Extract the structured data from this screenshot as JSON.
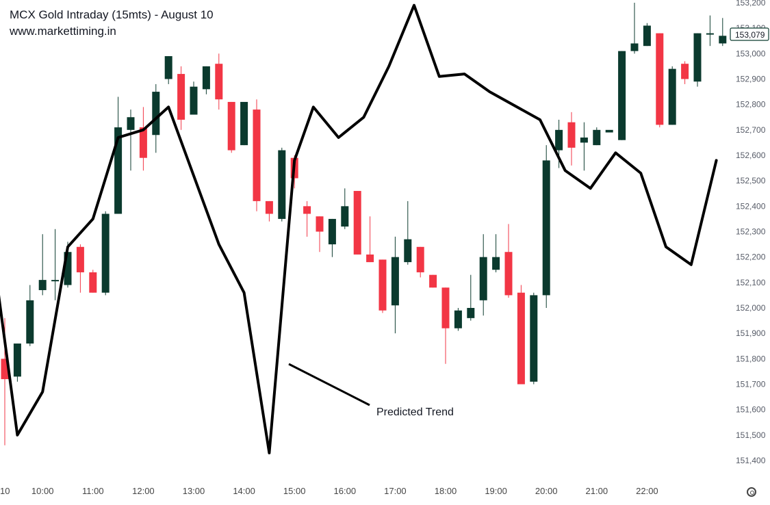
{
  "chart_data": {
    "type": "candlestick",
    "title": "MCX Gold Intraday (15mts) - August 10",
    "subtitle": "www.markettiming.in",
    "y_ticks": [
      151400,
      151500,
      151600,
      151700,
      151800,
      151900,
      152000,
      152100,
      152200,
      152300,
      152400,
      152500,
      152600,
      152700,
      152800,
      152900,
      153000,
      153100,
      153200
    ],
    "y_tick_labels": [
      "151,400",
      "151,500",
      "151,600",
      "151,700",
      "151,800",
      "151,900",
      "152,000",
      "152,100",
      "152,200",
      "152,300",
      "152,400",
      "152,500",
      "152,600",
      "152,700",
      "152,800",
      "152,900",
      "153,000",
      "153,100",
      "153,200"
    ],
    "ylim": [
      151350,
      153210
    ],
    "x_ticks": [
      {
        "label": "10",
        "index": -1
      },
      {
        "label": "10:00",
        "index": 3
      },
      {
        "label": "11:00",
        "index": 7
      },
      {
        "label": "12:00",
        "index": 11
      },
      {
        "label": "13:00",
        "index": 15
      },
      {
        "label": "14:00",
        "index": 19
      },
      {
        "label": "15:00",
        "index": 23
      },
      {
        "label": "16:00",
        "index": 27
      },
      {
        "label": "17:00",
        "index": 31
      },
      {
        "label": "18:00",
        "index": 35
      },
      {
        "label": "19:00",
        "index": 39
      },
      {
        "label": "20:00",
        "index": 43
      },
      {
        "label": "21:00",
        "index": 47
      },
      {
        "label": "22:00",
        "index": 51
      }
    ],
    "candles": [
      {
        "o": 151800,
        "h": 151960,
        "l": 151460,
        "c": 151720
      },
      {
        "o": 151730,
        "h": 151860,
        "l": 151710,
        "c": 151860
      },
      {
        "o": 151860,
        "h": 152090,
        "l": 151850,
        "c": 152030
      },
      {
        "o": 152070,
        "h": 152290,
        "l": 152050,
        "c": 152110
      },
      {
        "o": 152110,
        "h": 152310,
        "l": 152030,
        "c": 152110
      },
      {
        "o": 152090,
        "h": 152260,
        "l": 152080,
        "c": 152220
      },
      {
        "o": 152240,
        "h": 152250,
        "l": 152060,
        "c": 152140
      },
      {
        "o": 152140,
        "h": 152150,
        "l": 152060,
        "c": 152060
      },
      {
        "o": 152060,
        "h": 152380,
        "l": 152050,
        "c": 152370
      },
      {
        "o": 152370,
        "h": 152830,
        "l": 152370,
        "c": 152710
      },
      {
        "o": 152700,
        "h": 152780,
        "l": 152540,
        "c": 152750
      },
      {
        "o": 152710,
        "h": 152790,
        "l": 152540,
        "c": 152590
      },
      {
        "o": 152680,
        "h": 152880,
        "l": 152610,
        "c": 152850
      },
      {
        "o": 152900,
        "h": 152990,
        "l": 152880,
        "c": 152990
      },
      {
        "o": 152920,
        "h": 152950,
        "l": 152700,
        "c": 152740
      },
      {
        "o": 152760,
        "h": 152890,
        "l": 152760,
        "c": 152870
      },
      {
        "o": 152860,
        "h": 152950,
        "l": 152840,
        "c": 152950
      },
      {
        "o": 152960,
        "h": 153000,
        "l": 152780,
        "c": 152820
      },
      {
        "o": 152810,
        "h": 152810,
        "l": 152610,
        "c": 152620
      },
      {
        "o": 152640,
        "h": 152800,
        "l": 152640,
        "c": 152810
      },
      {
        "o": 152780,
        "h": 152820,
        "l": 152380,
        "c": 152420
      },
      {
        "o": 152420,
        "h": 152420,
        "l": 152340,
        "c": 152370
      },
      {
        "o": 152350,
        "h": 152630,
        "l": 152340,
        "c": 152620
      },
      {
        "o": 152590,
        "h": 152600,
        "l": 152470,
        "c": 152510
      },
      {
        "o": 152400,
        "h": 152420,
        "l": 152280,
        "c": 152370
      },
      {
        "o": 152360,
        "h": 152360,
        "l": 152220,
        "c": 152300
      },
      {
        "o": 152250,
        "h": 152350,
        "l": 152200,
        "c": 152350
      },
      {
        "o": 152320,
        "h": 152470,
        "l": 152310,
        "c": 152400
      },
      {
        "o": 152460,
        "h": 152460,
        "l": 152210,
        "c": 152210
      },
      {
        "o": 152210,
        "h": 152360,
        "l": 152180,
        "c": 152180
      },
      {
        "o": 152190,
        "h": 152190,
        "l": 151980,
        "c": 151990
      },
      {
        "o": 152010,
        "h": 152280,
        "l": 151900,
        "c": 152200
      },
      {
        "o": 152180,
        "h": 152420,
        "l": 152170,
        "c": 152270
      },
      {
        "o": 152240,
        "h": 152240,
        "l": 152120,
        "c": 152140
      },
      {
        "o": 152130,
        "h": 152130,
        "l": 152080,
        "c": 152080
      },
      {
        "o": 152080,
        "h": 152080,
        "l": 151780,
        "c": 151920
      },
      {
        "o": 151920,
        "h": 152000,
        "l": 151910,
        "c": 151990
      },
      {
        "o": 151960,
        "h": 152130,
        "l": 151950,
        "c": 152000
      },
      {
        "o": 152030,
        "h": 152290,
        "l": 151970,
        "c": 152200
      },
      {
        "o": 152150,
        "h": 152290,
        "l": 152140,
        "c": 152200
      },
      {
        "o": 152220,
        "h": 152330,
        "l": 152040,
        "c": 152050
      },
      {
        "o": 152060,
        "h": 152090,
        "l": 151700,
        "c": 151700
      },
      {
        "o": 151710,
        "h": 152060,
        "l": 151700,
        "c": 152050
      },
      {
        "o": 152050,
        "h": 152640,
        "l": 152000,
        "c": 152580
      },
      {
        "o": 152620,
        "h": 152740,
        "l": 152550,
        "c": 152700
      },
      {
        "o": 152730,
        "h": 152770,
        "l": 152560,
        "c": 152630
      },
      {
        "o": 152650,
        "h": 152730,
        "l": 152540,
        "c": 152670
      },
      {
        "o": 152640,
        "h": 152710,
        "l": 152640,
        "c": 152700
      },
      {
        "o": 152690,
        "h": 152690,
        "l": 152690,
        "c": 152700
      },
      {
        "o": 152660,
        "h": 153010,
        "l": 152660,
        "c": 153010
      },
      {
        "o": 153010,
        "h": 153200,
        "l": 153000,
        "c": 153040
      },
      {
        "o": 153030,
        "h": 153120,
        "l": 153030,
        "c": 153110
      },
      {
        "o": 153080,
        "h": 153080,
        "l": 152710,
        "c": 152720
      },
      {
        "o": 152720,
        "h": 152950,
        "l": 152720,
        "c": 152940
      },
      {
        "o": 152960,
        "h": 152970,
        "l": 152880,
        "c": 152900
      },
      {
        "o": 152890,
        "h": 153080,
        "l": 152870,
        "c": 153080
      },
      {
        "o": 153080,
        "h": 153150,
        "l": 153030,
        "c": 153080
      },
      {
        "o": 153040,
        "h": 153140,
        "l": 153030,
        "c": 153070
      }
    ],
    "predicted_trend": [
      {
        "i": -1,
        "y": 152240
      },
      {
        "i": 1,
        "y": 151500
      },
      {
        "i": 3,
        "y": 151670
      },
      {
        "i": 5,
        "y": 152240
      },
      {
        "i": 7,
        "y": 152350
      },
      {
        "i": 9,
        "y": 152670
      },
      {
        "i": 11,
        "y": 152700
      },
      {
        "i": 13,
        "y": 152790
      },
      {
        "i": 17,
        "y": 152250
      },
      {
        "i": 19,
        "y": 152060
      },
      {
        "i": 21,
        "y": 151430
      },
      {
        "i": 23,
        "y": 152580
      },
      {
        "i": 24.5,
        "y": 152790
      },
      {
        "i": 26.5,
        "y": 152670
      },
      {
        "i": 28.5,
        "y": 152750
      },
      {
        "i": 30.5,
        "y": 152950
      },
      {
        "i": 32.5,
        "y": 153190
      },
      {
        "i": 34.5,
        "y": 152910
      },
      {
        "i": 36.5,
        "y": 152920
      },
      {
        "i": 38.5,
        "y": 152850
      },
      {
        "i": 42.5,
        "y": 152740
      },
      {
        "i": 44.5,
        "y": 152540
      },
      {
        "i": 46.5,
        "y": 152470
      },
      {
        "i": 48.5,
        "y": 152610
      },
      {
        "i": 50.5,
        "y": 152530
      },
      {
        "i": 52.5,
        "y": 152240
      },
      {
        "i": 54.5,
        "y": 152170
      },
      {
        "i": 56.5,
        "y": 152580
      }
    ],
    "annotation": "Predicted Trend",
    "last_price_label": "153,079",
    "colors": {
      "up": "#0b3a2e",
      "down": "#f23645",
      "line": "#000000",
      "tag_border": "#0b3a2e"
    }
  }
}
